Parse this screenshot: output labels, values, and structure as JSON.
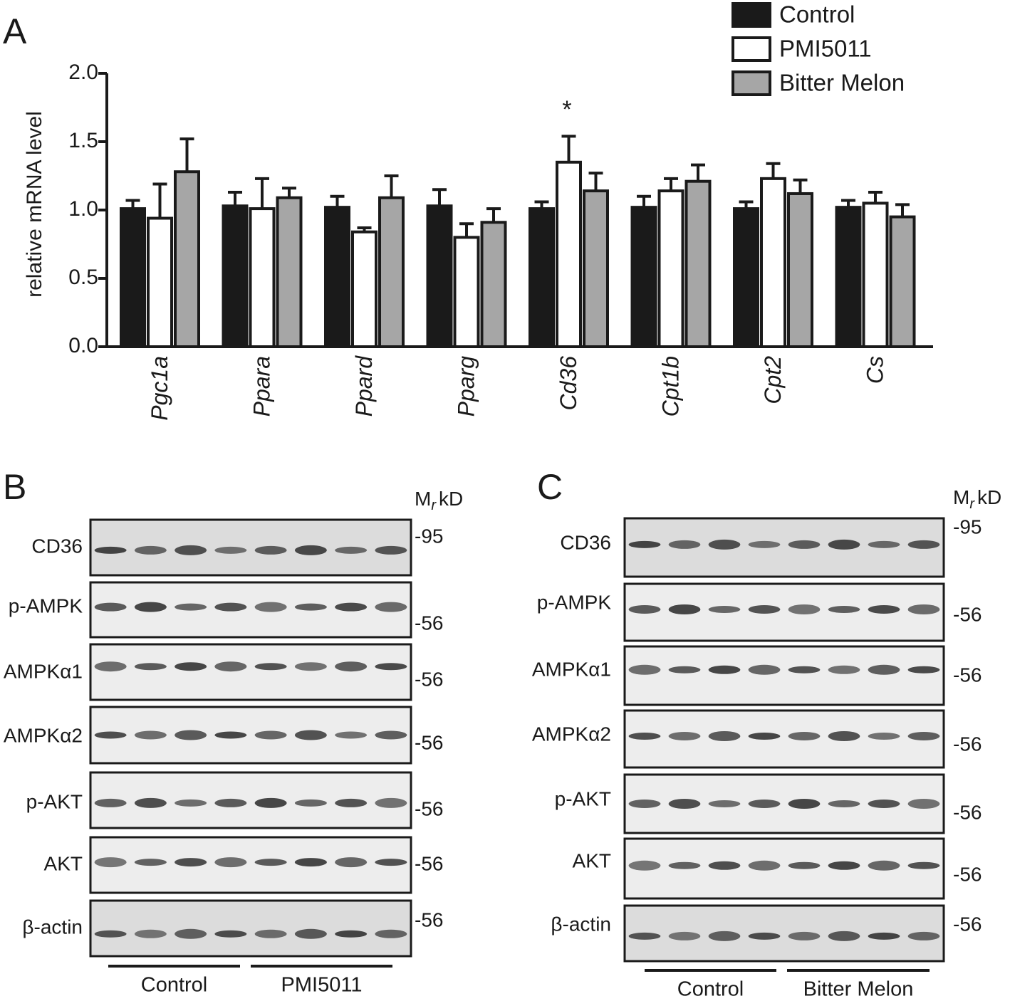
{
  "chart_data": {
    "type": "bar",
    "panel_label": "A",
    "y_label": "relative mRNA level",
    "categories": [
      "Pgc1a",
      "Ppara",
      "Ppard",
      "Pparg",
      "Cd36",
      "Cpt1b",
      "Cpt2",
      "Cs"
    ],
    "series": [
      {
        "name": "Control",
        "color": "#1a1a1a",
        "values": [
          1.01,
          1.03,
          1.02,
          1.03,
          1.01,
          1.02,
          1.01,
          1.02
        ],
        "errors": [
          0.06,
          0.1,
          0.08,
          0.12,
          0.05,
          0.08,
          0.05,
          0.05
        ]
      },
      {
        "name": "PMI5011",
        "color": "#ffffff",
        "values": [
          0.94,
          1.01,
          0.84,
          0.8,
          1.35,
          1.14,
          1.23,
          1.05
        ],
        "errors": [
          0.25,
          0.22,
          0.03,
          0.1,
          0.19,
          0.09,
          0.11,
          0.08
        ]
      },
      {
        "name": "Bitter Melon",
        "color": "#a6a6a6",
        "values": [
          1.28,
          1.09,
          1.09,
          0.91,
          1.14,
          1.21,
          1.12,
          0.95
        ],
        "errors": [
          0.24,
          0.07,
          0.16,
          0.1,
          0.13,
          0.12,
          0.1,
          0.09
        ]
      }
    ],
    "ylim": [
      0,
      2
    ],
    "yticks": [
      {
        "value": 0,
        "label": "0.0"
      },
      {
        "value": 0.5,
        "label": "0.5"
      },
      {
        "value": 1,
        "label": "1.0"
      },
      {
        "value": 1.5,
        "label": "1.5"
      },
      {
        "value": 2,
        "label": "2.0"
      }
    ],
    "annotations": [
      {
        "text": "*"
      }
    ],
    "legend": "top-right",
    "grid": false
  },
  "panel_b": {
    "panel_label": "B",
    "mr": "M",
    "mr_sub": "r",
    "mr_unit": "kD",
    "rows": [
      {
        "label": "CD36",
        "marker": "-95"
      },
      {
        "label": "p-AMPK",
        "marker": "-56"
      },
      {
        "label": "AMPKα1",
        "marker": "-56"
      },
      {
        "label": "AMPKα2",
        "marker": "-56"
      },
      {
        "label": "p-AKT",
        "marker": "-56"
      },
      {
        "label": "AKT",
        "marker": "-56"
      },
      {
        "label": "β-actin",
        "marker": "-56"
      }
    ],
    "groups": [
      "Control",
      "PMI5011"
    ]
  },
  "panel_c": {
    "panel_label": "C",
    "mr": "M",
    "mr_sub": "r",
    "mr_unit": "kD",
    "rows": [
      {
        "label": "CD36",
        "marker": "-95"
      },
      {
        "label": "p-AMPK",
        "marker": "-56"
      },
      {
        "label": "AMPKα1",
        "marker": "-56"
      },
      {
        "label": "AMPKα2",
        "marker": "-56"
      },
      {
        "label": "p-AKT",
        "marker": "-56"
      },
      {
        "label": "AKT",
        "marker": "-56"
      },
      {
        "label": "β-actin",
        "marker": "-56"
      }
    ],
    "groups": [
      "Control",
      "Bitter Melon"
    ]
  }
}
